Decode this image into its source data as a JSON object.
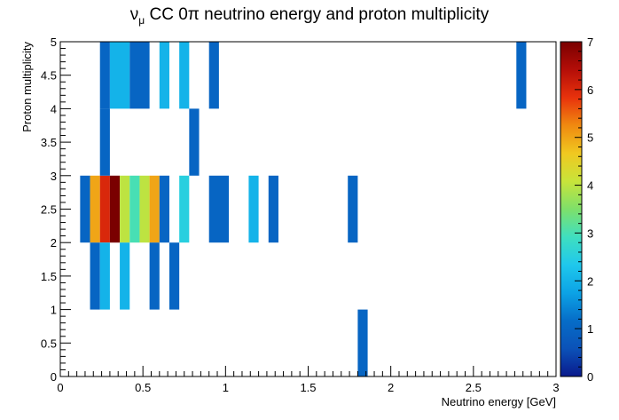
{
  "chart_data": {
    "type": "heatmap",
    "title": "ν_μ CC 0π neutrino energy and proton multiplicity",
    "title_parts": {
      "nu": "ν",
      "mu": "μ",
      "rest": " CC 0π neutrino energy and proton multiplicity"
    },
    "xlabel": "Neutrino energy [GeV]",
    "ylabel": "Proton multiplicity",
    "xlim": [
      0,
      3
    ],
    "ylim": [
      0,
      5
    ],
    "x_ticks": [
      "0",
      "0.5",
      "1",
      "1.5",
      "2",
      "2.5",
      "3"
    ],
    "y_ticks": [
      "0",
      "0.5",
      "1",
      "1.5",
      "2",
      "2.5",
      "3",
      "3.5",
      "4",
      "4.5",
      "5"
    ],
    "z_range": [
      0,
      7
    ],
    "z_ticks": [
      "0",
      "1",
      "2",
      "3",
      "4",
      "5",
      "6",
      "7"
    ],
    "palette": [
      "#0a1a8c",
      "#0b52b8",
      "#066dc8",
      "#0ca3e6",
      "#1fc8ec",
      "#3fdfc0",
      "#7ee06a",
      "#c8e43a",
      "#f0c820",
      "#f08a10",
      "#e8320c",
      "#b40e08",
      "#7a0000"
    ],
    "cells": [
      {
        "x0": 0.12,
        "x1": 0.18,
        "y0": 2,
        "y1": 3,
        "value": 1
      },
      {
        "x0": 0.18,
        "x1": 0.24,
        "y0": 2,
        "y1": 3,
        "value": 5
      },
      {
        "x0": 0.24,
        "x1": 0.3,
        "y0": 2,
        "y1": 3,
        "value": 6
      },
      {
        "x0": 0.3,
        "x1": 0.36,
        "y0": 2,
        "y1": 3,
        "value": 7
      },
      {
        "x0": 0.36,
        "x1": 0.42,
        "y0": 2,
        "y1": 3,
        "value": 4
      },
      {
        "x0": 0.42,
        "x1": 0.48,
        "y0": 2,
        "y1": 3,
        "value": 3
      },
      {
        "x0": 0.48,
        "x1": 0.54,
        "y0": 2,
        "y1": 3,
        "value": 4
      },
      {
        "x0": 0.54,
        "x1": 0.6,
        "y0": 2,
        "y1": 3,
        "value": 5
      },
      {
        "x0": 0.6,
        "x1": 0.66,
        "y0": 2,
        "y1": 3,
        "value": 1
      },
      {
        "x0": 0.72,
        "x1": 0.78,
        "y0": 2,
        "y1": 3,
        "value": 2.5
      },
      {
        "x0": 0.9,
        "x1": 1.02,
        "y0": 2,
        "y1": 3,
        "value": 1
      },
      {
        "x0": 1.14,
        "x1": 1.2,
        "y0": 2,
        "y1": 3,
        "value": 2
      },
      {
        "x0": 1.26,
        "x1": 1.32,
        "y0": 2,
        "y1": 3,
        "value": 1
      },
      {
        "x0": 1.74,
        "x1": 1.8,
        "y0": 2,
        "y1": 3,
        "value": 1
      },
      {
        "x0": 0.24,
        "x1": 0.3,
        "y0": 3,
        "y1": 4,
        "value": 1
      },
      {
        "x0": 0.78,
        "x1": 0.84,
        "y0": 3,
        "y1": 4,
        "value": 1
      },
      {
        "x0": 0.24,
        "x1": 0.3,
        "y0": 4,
        "y1": 5,
        "value": 1
      },
      {
        "x0": 0.3,
        "x1": 0.42,
        "y0": 4,
        "y1": 5,
        "value": 2
      },
      {
        "x0": 0.42,
        "x1": 0.54,
        "y0": 4,
        "y1": 5,
        "value": 1
      },
      {
        "x0": 0.6,
        "x1": 0.66,
        "y0": 4,
        "y1": 5,
        "value": 2
      },
      {
        "x0": 0.72,
        "x1": 0.78,
        "y0": 4,
        "y1": 5,
        "value": 2
      },
      {
        "x0": 0.9,
        "x1": 0.96,
        "y0": 4,
        "y1": 5,
        "value": 1
      },
      {
        "x0": 2.76,
        "x1": 2.82,
        "y0": 4,
        "y1": 5,
        "value": 1
      },
      {
        "x0": 0.18,
        "x1": 0.24,
        "y0": 1,
        "y1": 2,
        "value": 1
      },
      {
        "x0": 0.24,
        "x1": 0.3,
        "y0": 1,
        "y1": 2,
        "value": 2
      },
      {
        "x0": 0.36,
        "x1": 0.42,
        "y0": 1,
        "y1": 2,
        "value": 2
      },
      {
        "x0": 0.54,
        "x1": 0.6,
        "y0": 1,
        "y1": 2,
        "value": 1
      },
      {
        "x0": 0.66,
        "x1": 0.72,
        "y0": 1,
        "y1": 2,
        "value": 1
      },
      {
        "x0": 1.8,
        "x1": 1.86,
        "y0": 0,
        "y1": 1,
        "value": 1
      }
    ]
  }
}
